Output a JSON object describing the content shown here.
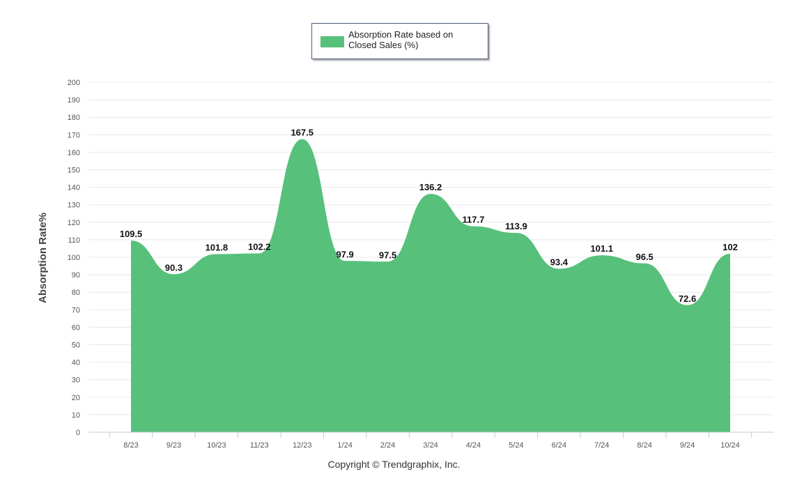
{
  "chart_data": {
    "type": "area",
    "categories": [
      "8/23",
      "9/23",
      "10/23",
      "11/23",
      "12/23",
      "1/24",
      "2/24",
      "3/24",
      "4/24",
      "5/24",
      "6/24",
      "7/24",
      "8/24",
      "9/24",
      "10/24"
    ],
    "series": [
      {
        "name": "Absorption Rate based on Closed Sales (%)",
        "values": [
          109.5,
          90.3,
          101.8,
          102.2,
          167.5,
          97.9,
          97.5,
          136.2,
          117.7,
          113.9,
          93.4,
          101.1,
          96.5,
          72.6,
          102
        ],
        "labels": [
          "109.5",
          "90.3",
          "101.8",
          "102.2",
          "167.5",
          "97.9",
          "97.5",
          "136.2",
          "117.7",
          "113.9",
          "93.4",
          "101.1",
          "96.5",
          "72.6",
          "102"
        ]
      }
    ],
    "ylabel": "Absorption Rate%",
    "xlabel": "",
    "ylim": [
      0,
      200
    ],
    "yticks": [
      0,
      10,
      20,
      30,
      40,
      50,
      60,
      70,
      80,
      90,
      100,
      110,
      120,
      130,
      140,
      150,
      160,
      170,
      180,
      190,
      200
    ],
    "grid": true,
    "legend_position": "top-center",
    "colors": {
      "area": "#57c07b",
      "grid": "#e8e8e8",
      "axis": "#c0c8d8",
      "legend_border": "#4a5a7a"
    }
  },
  "legend": {
    "label_line1": "Absorption Rate based on",
    "label_line2": "Closed Sales (%)"
  },
  "footer": {
    "copyright": "Copyright © Trendgraphix, Inc."
  }
}
